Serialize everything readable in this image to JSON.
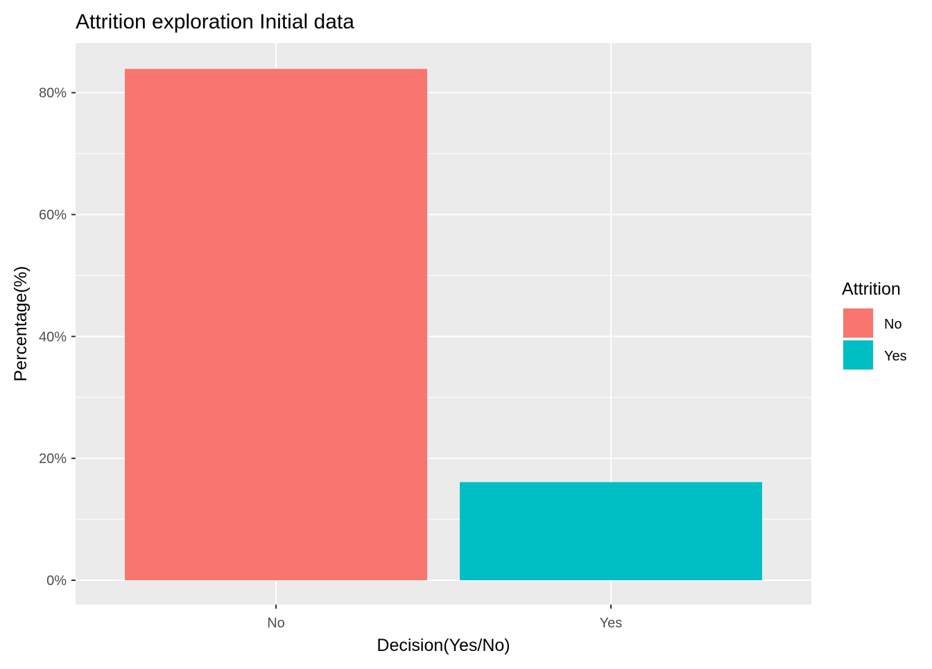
{
  "chart_data": {
    "type": "bar",
    "title": "Attrition exploration Initial data",
    "xlabel": "Decision(Yes/No)",
    "ylabel": "Percentage(%)",
    "categories": [
      "No",
      "Yes"
    ],
    "values": [
      83.9,
      16.1
    ],
    "colors": [
      "#F8766D",
      "#00BFC4"
    ],
    "ylim": [
      0,
      88
    ],
    "yticks": [
      0,
      20,
      40,
      60,
      80
    ],
    "ytick_labels": [
      "0%",
      "20%",
      "40%",
      "60%",
      "80%"
    ],
    "grid": true,
    "panel_background": "#EBEBEB",
    "grid_color": "#FFFFFF",
    "legend": {
      "title": "Attrition",
      "placement": "right",
      "entries": [
        {
          "label": "No",
          "color": "#F8766D"
        },
        {
          "label": "Yes",
          "color": "#00BFC4"
        }
      ]
    }
  }
}
